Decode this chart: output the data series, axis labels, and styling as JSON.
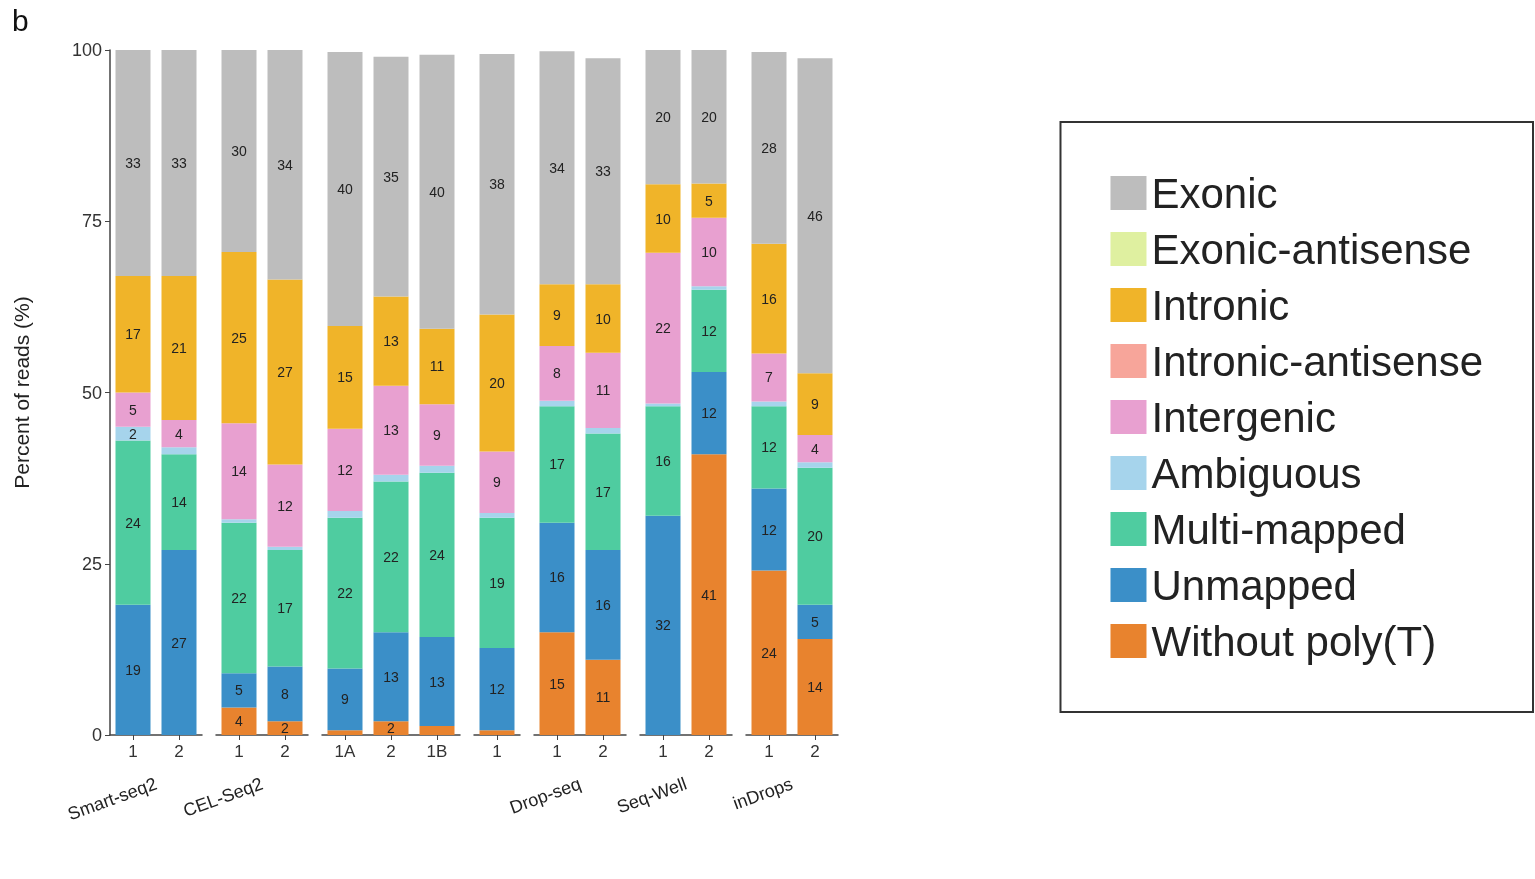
{
  "chart_data": [
    {
      "type": "bar",
      "stacked": true,
      "xlabel": "Smart-seq2",
      "ylabel": "Percent of reads (%)",
      "ylim": [
        0,
        100
      ],
      "yticks": [
        0,
        25,
        50,
        75,
        100
      ],
      "annotations": [
        "b"
      ],
      "categories": [
        "1",
        "2"
      ],
      "series": [
        {
          "color": "#e8832e",
          "values": [
            0,
            0
          ],
          "value_labels": [
            null,
            null
          ]
        },
        {
          "color": "#3b8fc8",
          "values": [
            19,
            27
          ],
          "value_labels": [
            "19",
            "27"
          ]
        },
        {
          "color": "#4fcca0",
          "values": [
            24,
            14
          ],
          "value_labels": [
            "24",
            "14"
          ]
        },
        {
          "color": "#a6d4ec",
          "values": [
            2,
            1
          ],
          "value_labels": [
            "2",
            null
          ]
        },
        {
          "color": "#e8a0d0",
          "values": [
            5,
            4
          ],
          "value_labels": [
            "5",
            "4"
          ]
        },
        {
          "color": "#f7a59a",
          "values": [
            0,
            0
          ],
          "value_labels": [
            null,
            null
          ]
        },
        {
          "color": "#f0b429",
          "values": [
            17,
            21
          ],
          "value_labels": [
            "17",
            "21"
          ]
        },
        {
          "color": "#dff0a0",
          "values": [
            0,
            0
          ],
          "value_labels": [
            null,
            null
          ]
        },
        {
          "color": "#bdbdbd",
          "values": [
            33,
            33
          ],
          "value_labels": [
            "33",
            "33"
          ]
        }
      ]
    },
    {
      "type": "bar",
      "stacked": true,
      "xlabel": "CEL-Seq2",
      "ylim": [
        0,
        100
      ],
      "tick_labels": "x",
      "categories": [
        "1",
        "2"
      ],
      "series": [
        {
          "color": "#e8832e",
          "values": [
            4,
            2
          ],
          "value_labels": [
            "4",
            "2"
          ]
        },
        {
          "color": "#3b8fc8",
          "values": [
            5,
            8
          ],
          "value_labels": [
            "5",
            "8"
          ]
        },
        {
          "color": "#4fcca0",
          "values": [
            22,
            17
          ],
          "value_labels": [
            "22",
            "17"
          ]
        },
        {
          "color": "#a6d4ec",
          "values": [
            0.5,
            0.5
          ],
          "value_labels": [
            null,
            null
          ]
        },
        {
          "color": "#e8a0d0",
          "values": [
            14,
            12
          ],
          "value_labels": [
            "14",
            "12"
          ]
        },
        {
          "color": "#f7a59a",
          "values": [
            0,
            0
          ],
          "value_labels": [
            null,
            null
          ]
        },
        {
          "color": "#f0b429",
          "values": [
            25,
            27
          ],
          "value_labels": [
            "25",
            "27"
          ]
        },
        {
          "color": "#dff0a0",
          "values": [
            0,
            0
          ],
          "value_labels": [
            null,
            null
          ]
        },
        {
          "color": "#bdbdbd",
          "values": [
            29.5,
            33.5
          ],
          "value_labels": [
            "30",
            "34"
          ]
        }
      ]
    },
    {
      "type": "bar",
      "stacked": true,
      "ylim": [
        0,
        100
      ],
      "tick_labels": "x",
      "categories": [
        "1A",
        "2",
        "1B"
      ],
      "series": [
        {
          "color": "#e8832e",
          "values": [
            0.7,
            2,
            1.3
          ],
          "value_labels": [
            null,
            "2",
            null
          ]
        },
        {
          "color": "#3b8fc8",
          "values": [
            9,
            13,
            13
          ],
          "value_labels": [
            "9",
            "13",
            "13"
          ]
        },
        {
          "color": "#4fcca0",
          "values": [
            22,
            22,
            24
          ],
          "value_labels": [
            "22",
            "22",
            "24"
          ]
        },
        {
          "color": "#a6d4ec",
          "values": [
            1,
            1,
            1
          ],
          "value_labels": [
            null,
            null,
            null
          ]
        },
        {
          "color": "#e8a0d0",
          "values": [
            12,
            13,
            9
          ],
          "value_labels": [
            "12",
            "13",
            "9"
          ]
        },
        {
          "color": "#f7a59a",
          "values": [
            0,
            0,
            0
          ],
          "value_labels": [
            null,
            null,
            null
          ]
        },
        {
          "color": "#f0b429",
          "values": [
            15,
            13,
            11
          ],
          "value_labels": [
            "15",
            "13",
            "11"
          ]
        },
        {
          "color": "#dff0a0",
          "values": [
            0,
            0,
            0
          ],
          "value_labels": [
            null,
            null,
            null
          ]
        },
        {
          "color": "#bdbdbd",
          "values": [
            40,
            35,
            40
          ],
          "value_labels": [
            "40",
            "35",
            "40"
          ]
        }
      ]
    },
    {
      "type": "bar",
      "stacked": true,
      "ylim": [
        0,
        100
      ],
      "tick_labels": "x",
      "categories": [
        "1"
      ],
      "series": [
        {
          "color": "#e8832e",
          "values": [
            0.7
          ],
          "value_labels": [
            null
          ]
        },
        {
          "color": "#3b8fc8",
          "values": [
            12
          ],
          "value_labels": [
            "12"
          ]
        },
        {
          "color": "#4fcca0",
          "values": [
            19
          ],
          "value_labels": [
            "19"
          ]
        },
        {
          "color": "#a6d4ec",
          "values": [
            0.7
          ],
          "value_labels": [
            null
          ]
        },
        {
          "color": "#e8a0d0",
          "values": [
            9
          ],
          "value_labels": [
            "9"
          ]
        },
        {
          "color": "#f7a59a",
          "values": [
            0
          ],
          "value_labels": [
            null
          ]
        },
        {
          "color": "#f0b429",
          "values": [
            20
          ],
          "value_labels": [
            "20"
          ]
        },
        {
          "color": "#dff0a0",
          "values": [
            0
          ],
          "value_labels": [
            null
          ]
        },
        {
          "color": "#bdbdbd",
          "values": [
            38
          ],
          "value_labels": [
            "38"
          ]
        }
      ]
    },
    {
      "type": "bar",
      "stacked": true,
      "xlabel": "Drop-seq",
      "ylim": [
        0,
        100
      ],
      "tick_labels": "x",
      "categories": [
        "1",
        "2"
      ],
      "series": [
        {
          "color": "#e8832e",
          "values": [
            15,
            11
          ],
          "value_labels": [
            "15",
            "11"
          ]
        },
        {
          "color": "#3b8fc8",
          "values": [
            16,
            16
          ],
          "value_labels": [
            "16",
            "16"
          ]
        },
        {
          "color": "#4fcca0",
          "values": [
            17,
            17
          ],
          "value_labels": [
            "17",
            "17"
          ]
        },
        {
          "color": "#a6d4ec",
          "values": [
            0.8,
            0.8
          ],
          "value_labels": [
            null,
            null
          ]
        },
        {
          "color": "#e8a0d0",
          "values": [
            8,
            11
          ],
          "value_labels": [
            "8",
            "11"
          ]
        },
        {
          "color": "#f7a59a",
          "values": [
            0,
            0
          ],
          "value_labels": [
            null,
            null
          ]
        },
        {
          "color": "#f0b429",
          "values": [
            9,
            10
          ],
          "value_labels": [
            "9",
            "10"
          ]
        },
        {
          "color": "#dff0a0",
          "values": [
            0,
            0
          ],
          "value_labels": [
            null,
            null
          ]
        },
        {
          "color": "#bdbdbd",
          "values": [
            34,
            33
          ],
          "value_labels": [
            "34",
            "33"
          ]
        }
      ]
    },
    {
      "type": "bar",
      "stacked": true,
      "xlabel": "Seq-Well",
      "ylim": [
        0,
        100
      ],
      "tick_labels": "x",
      "categories": [
        "1",
        "2"
      ],
      "series": [
        {
          "color": "#e8832e",
          "values": [
            0,
            41
          ],
          "value_labels": [
            null,
            "41"
          ]
        },
        {
          "color": "#3b8fc8",
          "values": [
            32,
            12
          ],
          "value_labels": [
            "32",
            "12"
          ]
        },
        {
          "color": "#4fcca0",
          "values": [
            16,
            12
          ],
          "value_labels": [
            "16",
            "12"
          ]
        },
        {
          "color": "#a6d4ec",
          "values": [
            0.4,
            0.5
          ],
          "value_labels": [
            null,
            null
          ]
        },
        {
          "color": "#e8a0d0",
          "values": [
            22,
            10
          ],
          "value_labels": [
            "22",
            "10"
          ]
        },
        {
          "color": "#f7a59a",
          "values": [
            0,
            0
          ],
          "value_labels": [
            null,
            null
          ]
        },
        {
          "color": "#f0b429",
          "values": [
            10,
            5
          ],
          "value_labels": [
            "10",
            "5"
          ]
        },
        {
          "color": "#dff0a0",
          "values": [
            0,
            0
          ],
          "value_labels": [
            null,
            null
          ]
        },
        {
          "color": "#bdbdbd",
          "values": [
            19.6,
            19.5
          ],
          "value_labels": [
            "20",
            "20"
          ]
        }
      ]
    },
    {
      "type": "bar",
      "stacked": true,
      "xlabel": "inDrops",
      "ylim": [
        0,
        100
      ],
      "tick_labels": "x",
      "legend": "right",
      "categories": [
        "1",
        "2"
      ],
      "series": [
        {
          "name": "Without poly(T)",
          "color": "#e8832e",
          "values": [
            24,
            14
          ],
          "value_labels": [
            "24",
            "14"
          ]
        },
        {
          "name": "Unmapped",
          "color": "#3b8fc8",
          "values": [
            12,
            5
          ],
          "value_labels": [
            "12",
            "5"
          ]
        },
        {
          "name": "Multi-mapped",
          "color": "#4fcca0",
          "values": [
            12,
            20
          ],
          "value_labels": [
            "12",
            "20"
          ]
        },
        {
          "name": "Ambiguous",
          "color": "#a6d4ec",
          "values": [
            0.7,
            0.8
          ],
          "value_labels": [
            null,
            null
          ]
        },
        {
          "name": "Intergenic",
          "color": "#e8a0d0",
          "values": [
            7,
            4
          ],
          "value_labels": [
            "7",
            "4"
          ]
        },
        {
          "name": "Intronic-antisense",
          "color": "#f7a59a",
          "values": [
            0,
            0
          ],
          "value_labels": [
            null,
            null
          ]
        },
        {
          "name": "Intronic",
          "color": "#f0b429",
          "values": [
            16,
            9
          ],
          "value_labels": [
            "16",
            "9"
          ]
        },
        {
          "name": "Exonic-antisense",
          "color": "#dff0a0",
          "values": [
            0,
            0
          ],
          "value_labels": [
            null,
            null
          ]
        },
        {
          "name": "Exonic",
          "color": "#bdbdbd",
          "values": [
            28,
            46
          ],
          "value_labels": [
            "28",
            "46"
          ]
        }
      ]
    }
  ]
}
